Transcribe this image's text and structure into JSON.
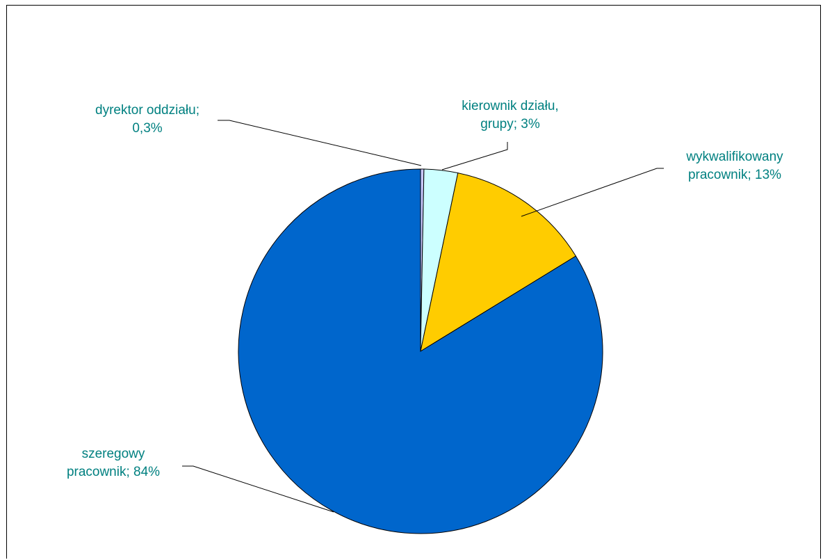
{
  "chart_data": {
    "type": "pie",
    "slices": [
      {
        "label_line1": "dyrektor oddziału;",
        "label_line2": "0,3%",
        "value": 0.3,
        "color": "#C8C8FF"
      },
      {
        "label_line1": "kierownik działu,",
        "label_line2": "grupy; 3%",
        "value": 3,
        "color": "#CCFFFF"
      },
      {
        "label_line1": "wykwalifikowany",
        "label_line2": "pracownik; 13%",
        "value": 13,
        "color": "#FFCC00"
      },
      {
        "label_line1": "szeregowy",
        "label_line2": "pracownik; 84%",
        "value": 84,
        "color": "#0066CC"
      }
    ],
    "label_color": "#008080"
  }
}
